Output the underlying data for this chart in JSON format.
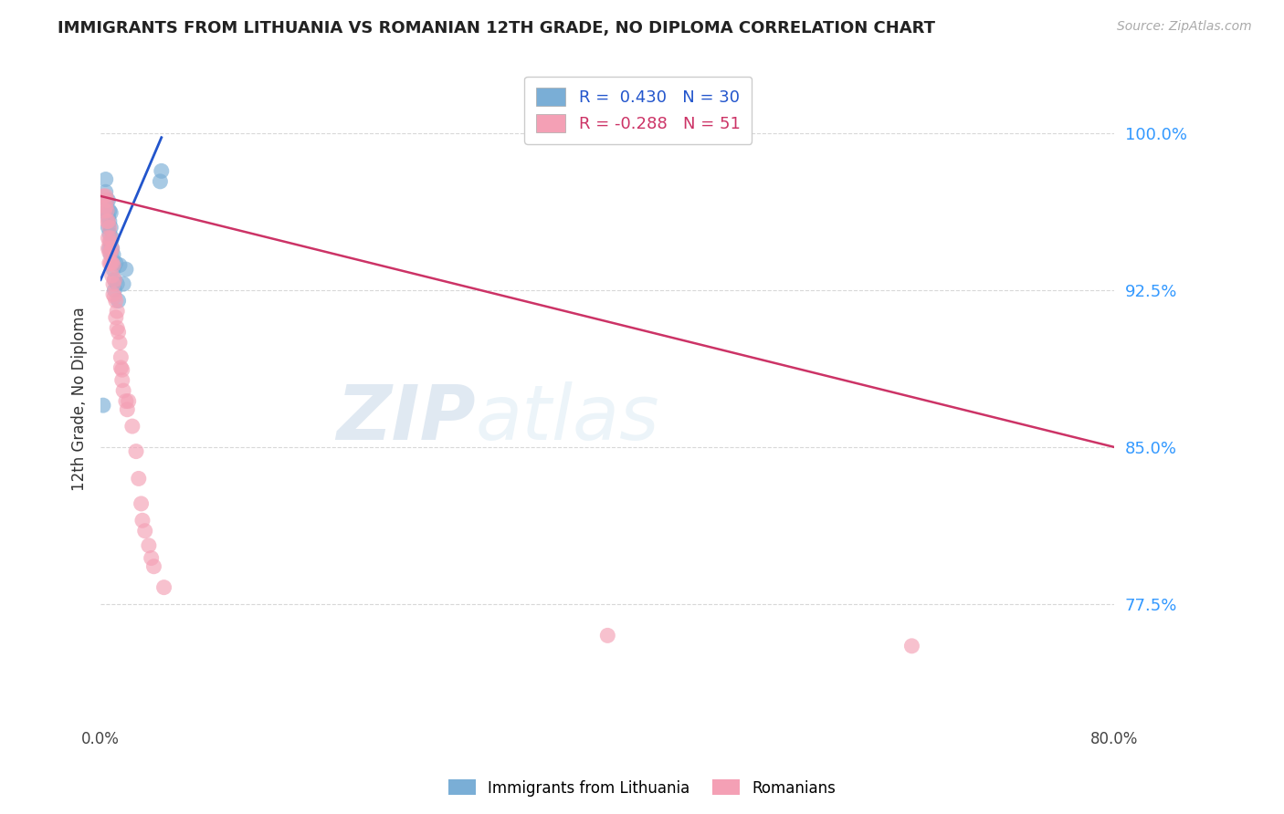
{
  "title": "IMMIGRANTS FROM LITHUANIA VS ROMANIAN 12TH GRADE, NO DIPLOMA CORRELATION CHART",
  "source": "Source: ZipAtlas.com",
  "ylabel": "12th Grade, No Diploma",
  "ytick_labels": [
    "100.0%",
    "92.5%",
    "85.0%",
    "77.5%"
  ],
  "ytick_values": [
    1.0,
    0.925,
    0.85,
    0.775
  ],
  "xlim": [
    0.0,
    0.8
  ],
  "ylim": [
    0.718,
    1.028
  ],
  "background_color": "#ffffff",
  "grid_color": "#d8d8d8",
  "blue_color": "#7aaed6",
  "pink_color": "#f4a0b5",
  "blue_line_color": "#2255cc",
  "pink_line_color": "#cc3366",
  "watermark_zip": "ZIP",
  "watermark_atlas": "atlas",
  "legend_blue_r": "0.430",
  "legend_blue_n": "30",
  "legend_pink_r": "-0.288",
  "legend_pink_n": "51",
  "legend_label_blue": "Immigrants from Lithuania",
  "legend_label_pink": "Romanians",
  "blue_line_x0": 0.0,
  "blue_line_y0": 0.93,
  "blue_line_x1": 0.048,
  "blue_line_y1": 0.998,
  "pink_line_x0": 0.0,
  "pink_line_y0": 0.97,
  "pink_line_x1": 0.8,
  "pink_line_y1": 0.85,
  "blue_x": [
    0.002,
    0.004,
    0.004,
    0.005,
    0.005,
    0.006,
    0.006,
    0.006,
    0.007,
    0.007,
    0.007,
    0.007,
    0.008,
    0.008,
    0.008,
    0.008,
    0.009,
    0.009,
    0.01,
    0.01,
    0.011,
    0.011,
    0.012,
    0.013,
    0.014,
    0.015,
    0.018,
    0.02,
    0.047,
    0.048
  ],
  "blue_y": [
    0.87,
    0.972,
    0.978,
    0.963,
    0.968,
    0.955,
    0.96,
    0.968,
    0.945,
    0.952,
    0.958,
    0.963,
    0.942,
    0.948,
    0.955,
    0.962,
    0.945,
    0.95,
    0.935,
    0.942,
    0.925,
    0.93,
    0.938,
    0.928,
    0.92,
    0.937,
    0.928,
    0.935,
    0.977,
    0.982
  ],
  "pink_x": [
    0.002,
    0.003,
    0.004,
    0.004,
    0.005,
    0.005,
    0.005,
    0.006,
    0.006,
    0.006,
    0.007,
    0.007,
    0.007,
    0.007,
    0.008,
    0.008,
    0.008,
    0.009,
    0.009,
    0.009,
    0.01,
    0.01,
    0.01,
    0.011,
    0.011,
    0.012,
    0.012,
    0.013,
    0.013,
    0.014,
    0.015,
    0.016,
    0.016,
    0.017,
    0.017,
    0.018,
    0.02,
    0.021,
    0.022,
    0.025,
    0.028,
    0.03,
    0.032,
    0.033,
    0.035,
    0.038,
    0.04,
    0.042,
    0.05,
    0.4,
    0.64
  ],
  "pink_y": [
    0.97,
    0.963,
    0.965,
    0.97,
    0.958,
    0.963,
    0.968,
    0.945,
    0.95,
    0.958,
    0.938,
    0.943,
    0.948,
    0.955,
    0.938,
    0.943,
    0.95,
    0.932,
    0.938,
    0.945,
    0.923,
    0.928,
    0.937,
    0.922,
    0.93,
    0.912,
    0.92,
    0.907,
    0.915,
    0.905,
    0.9,
    0.888,
    0.893,
    0.882,
    0.887,
    0.877,
    0.872,
    0.868,
    0.872,
    0.86,
    0.848,
    0.835,
    0.823,
    0.815,
    0.81,
    0.803,
    0.797,
    0.793,
    0.783,
    0.76,
    0.755
  ]
}
